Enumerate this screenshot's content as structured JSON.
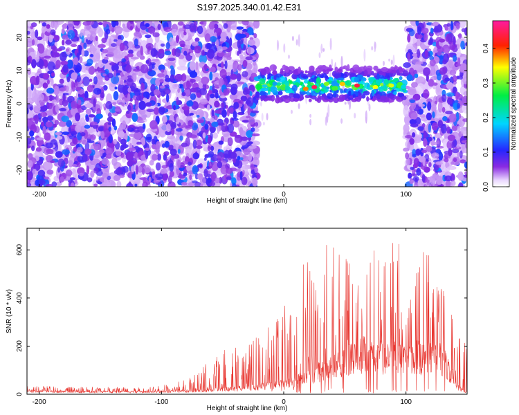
{
  "title": "S197.2025.340.01.42.E31",
  "chart_data": [
    {
      "type": "heatmap",
      "title": "S197.2025.340.01.42.E31",
      "xlabel": "Height of straight line (km)",
      "ylabel": "Frequency (Hz)",
      "xlim": [
        -210,
        150
      ],
      "ylim": [
        -25,
        25
      ],
      "xticks": [
        -200,
        -100,
        0,
        100
      ],
      "yticks": [
        -20,
        -10,
        0,
        10,
        20
      ],
      "colorbar": {
        "label": "Normalized spectral amplitude",
        "range": [
          0,
          0.48
        ],
        "ticks": [
          0.0,
          0.1,
          0.2,
          0.3,
          0.4
        ],
        "tick_labels": [
          "0.0",
          "0.1",
          "0.2",
          "0.3",
          "0.4"
        ],
        "colormap": "rainbow (white at 0, violet, blue, cyan, green, yellow, red, magenta)"
      },
      "regions": [
        {
          "x_range": [
            -210,
            -22
          ],
          "freq_range": [
            -25,
            25
          ],
          "amplitude": "low-moderate (scattered violet/blue noise)"
        },
        {
          "x_range": [
            -22,
            100
          ],
          "freq_range": [
            -25,
            -1
          ],
          "amplitude": "near zero (white)"
        },
        {
          "x_range": [
            -22,
            100
          ],
          "freq_range": [
            1,
            11
          ],
          "amplitude": "high (band centred near 5 Hz, peaks ~0.45 near x=25 and x=60)"
        },
        {
          "x_range": [
            100,
            150
          ],
          "freq_range": [
            -25,
            25
          ],
          "amplitude": "low-moderate (scattered violet/blue noise)"
        }
      ]
    },
    {
      "type": "line",
      "title": "",
      "xlabel": "Height of straight line (km)",
      "ylabel": "SNR (10 * v/v)",
      "xlim": [
        -210,
        150
      ],
      "ylim": [
        0,
        690
      ],
      "xticks": [
        -200,
        -100,
        0,
        100
      ],
      "yticks": [
        0,
        200,
        400,
        600
      ],
      "series": [
        {
          "name": "SNR",
          "color": "#e8342e",
          "envelope": {
            "x": [
              -210,
              -160,
              -110,
              -90,
              -75,
              -60,
              -45,
              -30,
              -15,
              0,
              10,
              20,
              35,
              50,
              65,
              80,
              85,
              90,
              105,
              120,
              130,
              140,
              145,
              150
            ],
            "baseline": [
              12,
              10,
              10,
              12,
              15,
              18,
              22,
              28,
              35,
              45,
              60,
              80,
              110,
              150,
              170,
              160,
              150,
              150,
              160,
              160,
              150,
              60,
              20,
              10
            ],
            "peak": [
              35,
              30,
              30,
              45,
              80,
              150,
              200,
              230,
              290,
              400,
              460,
              600,
              630,
              640,
              650,
              610,
              690,
              640,
              620,
              580,
              500,
              300,
              280,
              180
            ]
          }
        }
      ]
    }
  ]
}
